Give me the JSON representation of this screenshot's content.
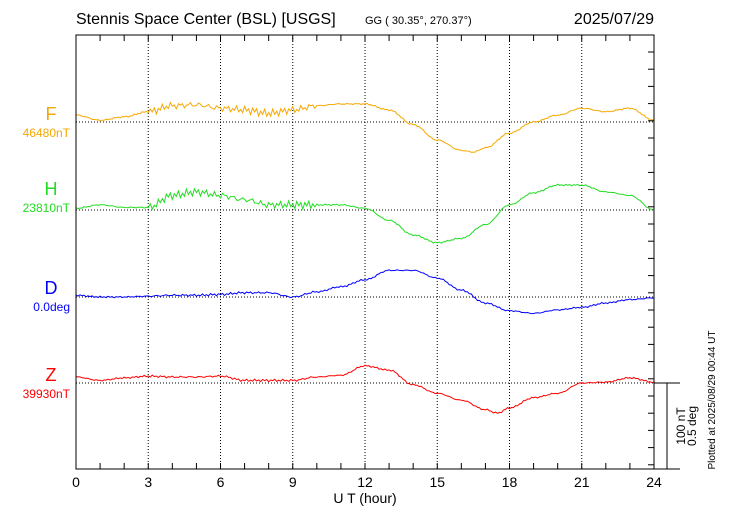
{
  "header": {
    "station": "Stennis Space Center (BSL)  [USGS]",
    "coords": "GG ( 30.35°, 270.37°)",
    "date": "2025/07/29"
  },
  "footer": {
    "plotted": "Plotted at 2025/08/29 00:44 UT"
  },
  "chart_data": {
    "type": "line",
    "xlabel": "U T (hour)",
    "xlim": [
      0,
      24
    ],
    "x_ticks": [
      "0",
      "3",
      "6",
      "9",
      "12",
      "15",
      "18",
      "21",
      "24"
    ],
    "grid": true,
    "scale_bar": {
      "nT_label": "100 nT",
      "deg_label": "0.5 deg",
      "nT": 100
    },
    "series": [
      {
        "name": "F",
        "baseline_label": "46480nT",
        "unit": "nT",
        "color": "#f5a800",
        "x": [
          0,
          1,
          2,
          3,
          4,
          5,
          6,
          7,
          8,
          9,
          10,
          11,
          12,
          13,
          14,
          15,
          16,
          16.5,
          17,
          18,
          19,
          20,
          21,
          22,
          23,
          24
        ],
        "values": [
          8,
          2,
          6,
          12,
          19,
          20,
          16,
          14,
          10,
          14,
          19,
          21,
          21,
          14,
          -3,
          -21,
          -33,
          -35,
          -30,
          -13,
          0,
          8,
          16,
          12,
          16,
          2
        ]
      },
      {
        "name": "H",
        "baseline_label": "23810nT",
        "unit": "nT",
        "color": "#22dd22",
        "x": [
          0,
          1,
          2,
          3,
          4,
          5,
          6,
          7,
          8,
          9,
          10,
          11,
          12,
          13,
          14,
          15,
          16,
          17,
          18,
          19,
          20,
          21,
          22,
          23,
          24
        ],
        "values": [
          2,
          6,
          3,
          3,
          17,
          21,
          17,
          12,
          6,
          6,
          6,
          6,
          2,
          -12,
          -29,
          -38,
          -33,
          -17,
          6,
          20,
          29,
          29,
          21,
          17,
          0
        ]
      },
      {
        "name": "D",
        "baseline_label": "0.0deg",
        "unit": "deg",
        "color": "#0000ff",
        "x": [
          0,
          1,
          2,
          3,
          4,
          5,
          6,
          7,
          8,
          9,
          10,
          11,
          12,
          13,
          14,
          15,
          16,
          17,
          18,
          19,
          20,
          21,
          22,
          23,
          24
        ],
        "values": [
          0.01,
          0,
          0,
          0.005,
          0.01,
          0.01,
          0.015,
          0.025,
          0.025,
          0,
          0.03,
          0.06,
          0.1,
          0.155,
          0.155,
          0.11,
          0.04,
          -0.035,
          -0.08,
          -0.095,
          -0.075,
          -0.06,
          -0.035,
          -0.015,
          -0.005
        ]
      },
      {
        "name": "Z",
        "baseline_label": "39930nT",
        "unit": "nT",
        "color": "#ff0000",
        "x": [
          0,
          1,
          2,
          3,
          4,
          5,
          6,
          7,
          8,
          9,
          10,
          11,
          12,
          13,
          14,
          15,
          16,
          17,
          17.5,
          18,
          19,
          20,
          21,
          22,
          23,
          24
        ],
        "values": [
          7,
          3,
          6,
          8,
          7,
          7,
          8,
          3,
          3,
          3,
          7,
          9,
          20,
          15,
          -2,
          -12,
          -20,
          -31,
          -35,
          -29,
          -17,
          -12,
          0,
          1,
          6,
          1
        ]
      }
    ]
  }
}
